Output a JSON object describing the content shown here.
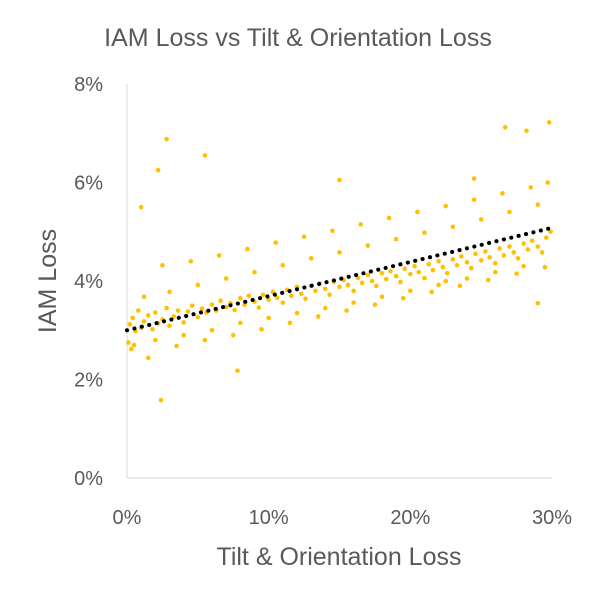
{
  "chart_data": {
    "type": "scatter",
    "title": "IAM Loss vs Tilt & Orientation Loss",
    "xlabel": "Tilt & Orientation Loss",
    "ylabel": "IAM Loss",
    "xlim": [
      0,
      0.3
    ],
    "ylim": [
      0,
      0.08
    ],
    "x_ticks": [
      "0%",
      "10%",
      "20%",
      "30%"
    ],
    "y_ticks": [
      "0%",
      "2%",
      "4%",
      "6%",
      "8%"
    ],
    "x_tick_values": [
      0,
      0.1,
      0.2,
      0.3
    ],
    "y_tick_values": [
      0,
      0.02,
      0.04,
      0.06,
      0.08
    ],
    "grid": false,
    "legend": "none",
    "point_color": "#FFC000",
    "trendline": {
      "style": "dotted",
      "color": "#000000",
      "x": [
        0,
        0.3
      ],
      "y": [
        0.03,
        0.0508
      ]
    },
    "series": [
      {
        "x": [
          0.002,
          0.004,
          0.006,
          0.008,
          0.01,
          0.012,
          0.015,
          0.018,
          0.02,
          0.022,
          0.025,
          0.028,
          0.03,
          0.033,
          0.036,
          0.04,
          0.043,
          0.046,
          0.05,
          0.053,
          0.056,
          0.06,
          0.063,
          0.066,
          0.07,
          0.073,
          0.076,
          0.08,
          0.083,
          0.086,
          0.09,
          0.093,
          0.096,
          0.1,
          0.103,
          0.106,
          0.11,
          0.113,
          0.116,
          0.12,
          0.123,
          0.126,
          0.13,
          0.133,
          0.136,
          0.14,
          0.143,
          0.146,
          0.15,
          0.153,
          0.156,
          0.16,
          0.163,
          0.166,
          0.17,
          0.173,
          0.176,
          0.18,
          0.183,
          0.186,
          0.19,
          0.193,
          0.196,
          0.2,
          0.203,
          0.206,
          0.21,
          0.213,
          0.216,
          0.22,
          0.223,
          0.226,
          0.23,
          0.233,
          0.236,
          0.24,
          0.243,
          0.246,
          0.25,
          0.253,
          0.256,
          0.26,
          0.263,
          0.266,
          0.27,
          0.273,
          0.276,
          0.28,
          0.283,
          0.286,
          0.29,
          0.293,
          0.296,
          0.299,
          0.005,
          0.012,
          0.02,
          0.03,
          0.04,
          0.05,
          0.06,
          0.07,
          0.08,
          0.09,
          0.1,
          0.11,
          0.12,
          0.13,
          0.14,
          0.15,
          0.16,
          0.17,
          0.18,
          0.19,
          0.2,
          0.21,
          0.22,
          0.23,
          0.24,
          0.25,
          0.26,
          0.27,
          0.28,
          0.29,
          0.003,
          0.015,
          0.025,
          0.035,
          0.045,
          0.055,
          0.065,
          0.075,
          0.085,
          0.095,
          0.105,
          0.115,
          0.125,
          0.135,
          0.145,
          0.155,
          0.165,
          0.175,
          0.185,
          0.195,
          0.205,
          0.215,
          0.225,
          0.235,
          0.245,
          0.255,
          0.265,
          0.275,
          0.285,
          0.295,
          0.028,
          0.055,
          0.022,
          0.15,
          0.245,
          0.282,
          0.267,
          0.298,
          0.024,
          0.078,
          0.29,
          0.297,
          0.001,
          0.01,
          0.225
        ],
        "y": [
          0.0312,
          0.0325,
          0.0298,
          0.034,
          0.0305,
          0.0318,
          0.033,
          0.0302,
          0.0336,
          0.0314,
          0.0322,
          0.0345,
          0.0309,
          0.0328,
          0.034,
          0.0316,
          0.0338,
          0.035,
          0.0327,
          0.0344,
          0.0336,
          0.0352,
          0.034,
          0.036,
          0.0347,
          0.0355,
          0.0341,
          0.0365,
          0.0352,
          0.037,
          0.0358,
          0.0346,
          0.0372,
          0.0362,
          0.0378,
          0.0366,
          0.0356,
          0.0382,
          0.037,
          0.0388,
          0.0374,
          0.0364,
          0.039,
          0.038,
          0.0395,
          0.0384,
          0.0372,
          0.0398,
          0.0388,
          0.0402,
          0.0392,
          0.038,
          0.0406,
          0.0396,
          0.0412,
          0.04,
          0.039,
          0.0416,
          0.0404,
          0.042,
          0.041,
          0.0398,
          0.0425,
          0.0414,
          0.043,
          0.0418,
          0.0406,
          0.0434,
          0.0422,
          0.044,
          0.0428,
          0.0416,
          0.0444,
          0.0432,
          0.045,
          0.0438,
          0.0426,
          0.0455,
          0.0442,
          0.046,
          0.0448,
          0.0436,
          0.0466,
          0.0452,
          0.047,
          0.0458,
          0.0446,
          0.0476,
          0.0464,
          0.0482,
          0.047,
          0.0458,
          0.0488,
          0.05,
          0.027,
          0.0368,
          0.028,
          0.0378,
          0.029,
          0.0392,
          0.03,
          0.0405,
          0.0315,
          0.0418,
          0.0325,
          0.0432,
          0.0335,
          0.0446,
          0.0345,
          0.0458,
          0.0356,
          0.0472,
          0.0368,
          0.0485,
          0.038,
          0.0498,
          0.0392,
          0.051,
          0.0405,
          0.0525,
          0.0418,
          0.054,
          0.043,
          0.0555,
          0.0262,
          0.0244,
          0.0432,
          0.0268,
          0.044,
          0.028,
          0.0452,
          0.029,
          0.0465,
          0.0302,
          0.0478,
          0.0315,
          0.049,
          0.0328,
          0.0502,
          0.034,
          0.0515,
          0.0352,
          0.0528,
          0.0365,
          0.054,
          0.0378,
          0.0552,
          0.039,
          0.0565,
          0.0402,
          0.0578,
          0.0415,
          0.059,
          0.0428,
          0.0688,
          0.0655,
          0.0625,
          0.0605,
          0.0608,
          0.0705,
          0.0712,
          0.0722,
          0.0158,
          0.0218,
          0.0355,
          0.06,
          0.0275,
          0.055,
          0.04
        ]
      }
    ]
  }
}
